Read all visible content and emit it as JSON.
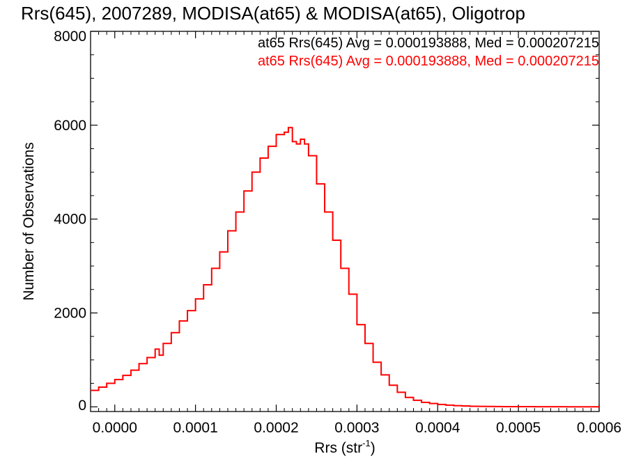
{
  "chart_data": {
    "type": "line",
    "title": "Rrs(645), 2007289, MODISA(at65) & MODISA(at65), Oligotrop",
    "xlabel": "Rrs (str",
    "xlabel_sup": "-1",
    "xlabel_close": ")",
    "ylabel": "Number of Observations",
    "xlim": [
      -3e-05,
      0.0006
    ],
    "ylim": [
      -100,
      8000
    ],
    "x_ticks": [
      0.0,
      0.0001,
      0.0002,
      0.0003,
      0.0004,
      0.0005,
      0.0006
    ],
    "x_tick_labels": [
      "0.0000",
      "0.0001",
      "0.0002",
      "0.0003",
      "0.0004",
      "0.0005",
      "0.0006"
    ],
    "y_ticks": [
      0,
      2000,
      4000,
      6000,
      8000
    ],
    "y_tick_labels": [
      "0",
      "2000",
      "4000",
      "6000",
      "8000"
    ],
    "grid": false,
    "legend": [
      {
        "text": "at65 Rrs(645) Avg = 0.000193888, Med = 0.000207215",
        "color": "#000000"
      },
      {
        "text": "at65 Rrs(645) Avg = 0.000193888, Med = 0.000207215",
        "color": "#ff0000"
      }
    ],
    "legend_placement": "top-right",
    "series": [
      {
        "color": "#ff0000",
        "style": "step",
        "x": [
          -3e-05,
          -2e-05,
          -1e-05,
          0.0,
          1e-05,
          2e-05,
          3e-05,
          4e-05,
          5e-05,
          5.5e-05,
          6e-05,
          7e-05,
          8e-05,
          9e-05,
          0.0001,
          0.00011,
          0.00012,
          0.00013,
          0.00014,
          0.00015,
          0.00016,
          0.00017,
          0.00018,
          0.00019,
          0.0002,
          0.00021,
          0.000215,
          0.00022,
          0.000225,
          0.00023,
          0.000235,
          0.00024,
          0.00025,
          0.00026,
          0.00027,
          0.00028,
          0.00029,
          0.0003,
          0.00031,
          0.00032,
          0.00033,
          0.00034,
          0.00035,
          0.00036,
          0.00037,
          0.00038,
          0.00039,
          0.0004,
          0.00041,
          0.00042,
          0.00043,
          0.00044,
          0.00045,
          0.00046,
          0.00047,
          0.00048,
          0.0005,
          0.00052,
          0.00054,
          0.00056,
          0.00058,
          0.0006
        ],
        "y": [
          350,
          420,
          500,
          580,
          670,
          780,
          920,
          1050,
          1230,
          1100,
          1350,
          1580,
          1830,
          2050,
          2300,
          2600,
          2950,
          3300,
          3750,
          4150,
          4600,
          5000,
          5300,
          5550,
          5800,
          5850,
          5950,
          5650,
          5600,
          5700,
          5600,
          5350,
          4750,
          4150,
          3550,
          2950,
          2400,
          1750,
          1350,
          950,
          680,
          460,
          310,
          200,
          140,
          95,
          70,
          50,
          35,
          25,
          18,
          12,
          9,
          7,
          5,
          4,
          3,
          2,
          2,
          1,
          1,
          1
        ]
      }
    ]
  }
}
